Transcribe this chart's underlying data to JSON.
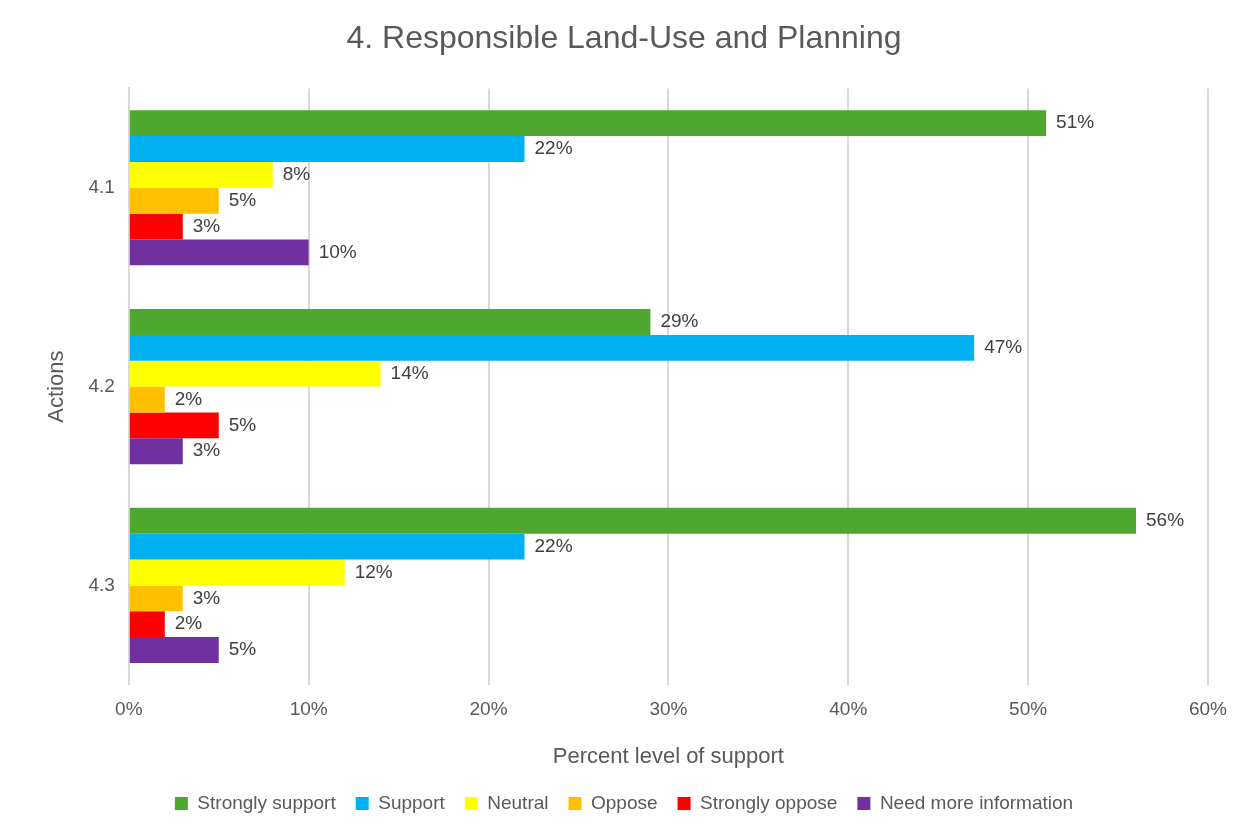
{
  "chart_data": {
    "type": "bar",
    "orientation": "horizontal",
    "title": "4. Responsible Land-Use and Planning",
    "xlabel": "Percent level of support",
    "ylabel": "Actions",
    "categories": [
      "4.1",
      "4.2",
      "4.3"
    ],
    "series": [
      {
        "name": "Strongly support",
        "color": "#4ea72e",
        "values": [
          51,
          29,
          56
        ],
        "value_labels": [
          "51%",
          "29%",
          "56%"
        ]
      },
      {
        "name": "Support",
        "color": "#00b0f0",
        "values": [
          22,
          47,
          22
        ],
        "value_labels": [
          "22%",
          "47%",
          "22%"
        ]
      },
      {
        "name": "Neutral",
        "color": "#ffff00",
        "values": [
          8,
          14,
          12
        ],
        "value_labels": [
          "8%",
          "14%",
          "12%"
        ]
      },
      {
        "name": "Oppose",
        "color": "#ffc000",
        "values": [
          5,
          2,
          3
        ],
        "value_labels": [
          "5%",
          "2%",
          "3%"
        ]
      },
      {
        "name": "Strongly oppose",
        "color": "#ff0000",
        "values": [
          3,
          5,
          2
        ],
        "value_labels": [
          "3%",
          "5%",
          "2%"
        ]
      },
      {
        "name": "Need more information",
        "color": "#7030a0",
        "values": [
          10,
          3,
          5
        ],
        "value_labels": [
          "10%",
          "3%",
          "5%"
        ]
      }
    ],
    "xlim": [
      0,
      60
    ],
    "xticks": [
      {
        "value": 0,
        "label": "0%"
      },
      {
        "value": 10,
        "label": "10%"
      },
      {
        "value": 20,
        "label": "20%"
      },
      {
        "value": 30,
        "label": "30%"
      },
      {
        "value": 40,
        "label": "40%"
      },
      {
        "value": 50,
        "label": "50%"
      },
      {
        "value": 60,
        "label": "60%"
      }
    ],
    "grid": "x",
    "legend": "bottom"
  }
}
